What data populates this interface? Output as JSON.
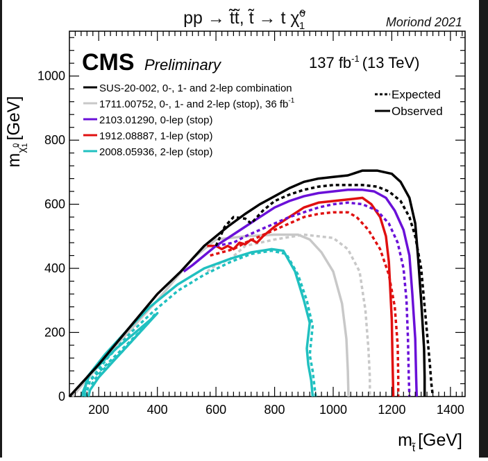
{
  "chart_data": {
    "type": "line",
    "title": "pp → t̃t̃,  t̃ → t χ̃",
    "title_sup": "0",
    "title_sub": "1",
    "corner_label": "Moriond 2021",
    "experiment": "CMS",
    "status": "Preliminary",
    "lumi_value": "137 fb",
    "lumi_sup": "-1",
    "lumi_energy": "(13 TeV)",
    "xlabel_main": "m",
    "xlabel_sub": "t̃",
    "xlabel_unit": "[GeV]",
    "ylabel_main": "m",
    "ylabel_sub": "χ̃",
    "ylabel_sup": "0",
    "ylabel_subsub": "1",
    "ylabel_unit": "[GeV]",
    "xlim": [
      100,
      1450
    ],
    "ylim": [
      0,
      1140
    ],
    "xticks": [
      200,
      400,
      600,
      800,
      1000,
      1200,
      1400
    ],
    "yticks": [
      0,
      200,
      400,
      600,
      800,
      1000
    ],
    "line_styles": [
      {
        "name": "Expected",
        "dash": true
      },
      {
        "name": "Observed",
        "dash": false
      }
    ],
    "legend": [
      {
        "label": "SUS-20-002, 0-, 1- and 2-lep combination",
        "sup": "",
        "color": "#000000"
      },
      {
        "label": "1711.00752, 0-, 1- and 2-lep (stop), 36 fb",
        "sup": "-1",
        "color": "#c8c8c8"
      },
      {
        "label": "2103.01290, 0-lep (stop)",
        "sup": "",
        "color": "#6a10d8"
      },
      {
        "label": "1912.08887, 1-lep (stop)",
        "sup": "",
        "color": "#e01010"
      },
      {
        "label": "2008.05936, 2-lep (stop)",
        "sup": "",
        "color": "#20c0c0"
      }
    ],
    "series": [
      {
        "color": "#c8c8c8",
        "dash": false,
        "points": [
          [
            110,
            0
          ],
          [
            250,
            150
          ],
          [
            400,
            300
          ],
          [
            520,
            430
          ],
          [
            600,
            490
          ],
          [
            700,
            500
          ],
          [
            800,
            505
          ],
          [
            880,
            505
          ],
          [
            920,
            490
          ],
          [
            960,
            450
          ],
          [
            1000,
            390
          ],
          [
            1030,
            290
          ],
          [
            1045,
            180
          ],
          [
            1050,
            80
          ],
          [
            1052,
            0
          ]
        ]
      },
      {
        "color": "#c8c8c8",
        "dash": true,
        "points": [
          [
            570,
            390
          ],
          [
            600,
            410
          ],
          [
            650,
            430
          ],
          [
            700,
            470
          ],
          [
            800,
            490
          ],
          [
            900,
            505
          ],
          [
            1000,
            495
          ],
          [
            1050,
            460
          ],
          [
            1090,
            390
          ],
          [
            1110,
            270
          ],
          [
            1120,
            150
          ],
          [
            1125,
            60
          ],
          [
            1125,
            0
          ]
        ]
      },
      {
        "color": "#20c0c0",
        "dash": false,
        "points": [
          [
            150,
            0
          ],
          [
            160,
            60
          ],
          [
            220,
            130
          ],
          [
            300,
            210
          ],
          [
            375,
            280
          ],
          [
            470,
            350
          ],
          [
            560,
            400
          ],
          [
            650,
            430
          ],
          [
            720,
            450
          ],
          [
            790,
            460
          ],
          [
            830,
            455
          ],
          [
            870,
            390
          ],
          [
            900,
            300
          ],
          [
            920,
            230
          ],
          [
            910,
            150
          ],
          [
            915,
            100
          ],
          [
            925,
            50
          ],
          [
            930,
            0
          ]
        ]
      },
      {
        "color": "#20c0c0",
        "dash": true,
        "points": [
          [
            155,
            0
          ],
          [
            170,
            50
          ],
          [
            230,
            120
          ],
          [
            310,
            200
          ],
          [
            380,
            260
          ],
          [
            470,
            330
          ],
          [
            560,
            380
          ],
          [
            650,
            420
          ],
          [
            720,
            445
          ],
          [
            790,
            455
          ],
          [
            840,
            445
          ],
          [
            880,
            380
          ],
          [
            910,
            300
          ],
          [
            930,
            220
          ],
          [
            920,
            130
          ],
          [
            930,
            80
          ],
          [
            940,
            0
          ]
        ]
      },
      {
        "color": "#20c0c0",
        "dash": false,
        "points": [
          [
            140,
            0
          ],
          [
            170,
            70
          ],
          [
            260,
            150
          ],
          [
            390,
            250
          ],
          [
            400,
            260
          ],
          [
            380,
            240
          ],
          [
            310,
            170
          ],
          [
            250,
            110
          ],
          [
            200,
            60
          ],
          [
            170,
            20
          ],
          [
            165,
            0
          ]
        ]
      },
      {
        "color": "#20c0c0",
        "dash": true,
        "points": [
          [
            160,
            40
          ],
          [
            260,
            130
          ],
          [
            360,
            220
          ],
          [
            390,
            255
          ],
          [
            370,
            230
          ],
          [
            280,
            140
          ],
          [
            200,
            70
          ],
          [
            170,
            30
          ]
        ]
      },
      {
        "color": "#e01010",
        "dash": false,
        "points": [
          [
            570,
            470
          ],
          [
            600,
            470
          ],
          [
            620,
            460
          ],
          [
            640,
            470
          ],
          [
            660,
            460
          ],
          [
            680,
            480
          ],
          [
            700,
            475
          ],
          [
            720,
            490
          ],
          [
            740,
            480
          ],
          [
            760,
            500
          ],
          [
            800,
            530
          ],
          [
            850,
            560
          ],
          [
            900,
            590
          ],
          [
            950,
            605
          ],
          [
            1000,
            610
          ],
          [
            1050,
            615
          ],
          [
            1100,
            620
          ],
          [
            1130,
            600
          ],
          [
            1160,
            560
          ],
          [
            1180,
            500
          ],
          [
            1190,
            420
          ],
          [
            1195,
            330
          ],
          [
            1200,
            240
          ],
          [
            1202,
            130
          ],
          [
            1204,
            50
          ],
          [
            1205,
            0
          ]
        ]
      },
      {
        "color": "#e01010",
        "dash": true,
        "points": [
          [
            580,
            440
          ],
          [
            620,
            450
          ],
          [
            660,
            460
          ],
          [
            700,
            480
          ],
          [
            750,
            500
          ],
          [
            800,
            520
          ],
          [
            850,
            540
          ],
          [
            900,
            560
          ],
          [
            950,
            570
          ],
          [
            1000,
            575
          ],
          [
            1050,
            575
          ],
          [
            1080,
            560
          ],
          [
            1120,
            520
          ],
          [
            1160,
            460
          ],
          [
            1190,
            380
          ],
          [
            1210,
            280
          ],
          [
            1220,
            160
          ],
          [
            1222,
            60
          ],
          [
            1222,
            0
          ]
        ]
      },
      {
        "color": "#6a10d8",
        "dash": false,
        "points": [
          [
            490,
            390
          ],
          [
            520,
            410
          ],
          [
            560,
            440
          ],
          [
            600,
            470
          ],
          [
            650,
            500
          ],
          [
            700,
            530
          ],
          [
            750,
            560
          ],
          [
            800,
            590
          ],
          [
            850,
            610
          ],
          [
            900,
            625
          ],
          [
            950,
            635
          ],
          [
            1000,
            640
          ],
          [
            1050,
            645
          ],
          [
            1100,
            645
          ],
          [
            1140,
            640
          ],
          [
            1180,
            620
          ],
          [
            1210,
            580
          ],
          [
            1240,
            520
          ],
          [
            1260,
            440
          ],
          [
            1270,
            320
          ],
          [
            1280,
            180
          ],
          [
            1283,
            60
          ],
          [
            1285,
            0
          ]
        ]
      },
      {
        "color": "#6a10d8",
        "dash": true,
        "points": [
          [
            600,
            470
          ],
          [
            660,
            480
          ],
          [
            700,
            500
          ],
          [
            750,
            520
          ],
          [
            800,
            540
          ],
          [
            850,
            560
          ],
          [
            900,
            575
          ],
          [
            950,
            590
          ],
          [
            1000,
            600
          ],
          [
            1050,
            605
          ],
          [
            1100,
            600
          ],
          [
            1150,
            580
          ],
          [
            1190,
            540
          ],
          [
            1220,
            480
          ],
          [
            1240,
            400
          ],
          [
            1250,
            300
          ],
          [
            1255,
            180
          ],
          [
            1258,
            60
          ],
          [
            1260,
            0
          ]
        ]
      },
      {
        "color": "#000000",
        "dash": false,
        "points": [
          [
            100,
            0
          ],
          [
            200,
            100
          ],
          [
            300,
            210
          ],
          [
            400,
            320
          ],
          [
            480,
            390
          ],
          [
            520,
            430
          ],
          [
            560,
            470
          ],
          [
            600,
            500
          ],
          [
            640,
            530
          ],
          [
            700,
            570
          ],
          [
            750,
            600
          ],
          [
            800,
            625
          ],
          [
            850,
            650
          ],
          [
            900,
            670
          ],
          [
            950,
            680
          ],
          [
            1000,
            685
          ],
          [
            1050,
            690
          ],
          [
            1100,
            705
          ],
          [
            1150,
            705
          ],
          [
            1200,
            695
          ],
          [
            1230,
            670
          ],
          [
            1260,
            620
          ],
          [
            1280,
            540
          ],
          [
            1290,
            430
          ],
          [
            1300,
            300
          ],
          [
            1310,
            150
          ],
          [
            1312,
            60
          ],
          [
            1312,
            0
          ]
        ]
      },
      {
        "color": "#000000",
        "dash": true,
        "points": [
          [
            600,
            470
          ],
          [
            630,
            530
          ],
          [
            660,
            560
          ],
          [
            700,
            555
          ],
          [
            720,
            540
          ],
          [
            760,
            580
          ],
          [
            800,
            610
          ],
          [
            850,
            630
          ],
          [
            900,
            645
          ],
          [
            950,
            655
          ],
          [
            1000,
            660
          ],
          [
            1050,
            660
          ],
          [
            1100,
            660
          ],
          [
            1150,
            655
          ],
          [
            1190,
            640
          ],
          [
            1230,
            610
          ],
          [
            1260,
            560
          ],
          [
            1280,
            500
          ],
          [
            1300,
            400
          ],
          [
            1310,
            300
          ],
          [
            1320,
            200
          ],
          [
            1330,
            100
          ],
          [
            1335,
            40
          ],
          [
            1340,
            0
          ]
        ]
      }
    ]
  }
}
